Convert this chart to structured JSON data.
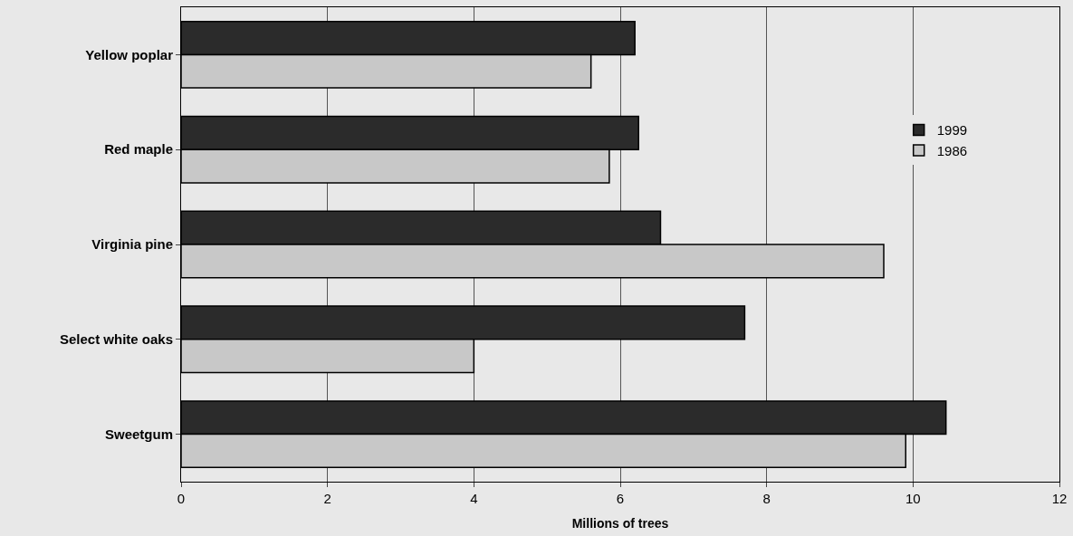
{
  "chart_data": {
    "type": "bar",
    "orientation": "horizontal",
    "xlabel": "Millions of trees",
    "categories": [
      "Yellow poplar",
      "Red maple",
      "Virginia pine",
      "Select white oaks",
      "Sweetgum"
    ],
    "series": [
      {
        "name": "1999",
        "color": "#2b2b2b",
        "values": [
          6.2,
          6.25,
          6.55,
          7.7,
          10.45
        ]
      },
      {
        "name": "1986",
        "color": "#c8c8c8",
        "values": [
          5.6,
          5.85,
          9.6,
          4.0,
          9.9
        ]
      }
    ],
    "xlim": [
      0,
      12
    ],
    "xticks": [
      0,
      2,
      4,
      6,
      8,
      10,
      12
    ],
    "grid": "x",
    "legend": "right"
  }
}
